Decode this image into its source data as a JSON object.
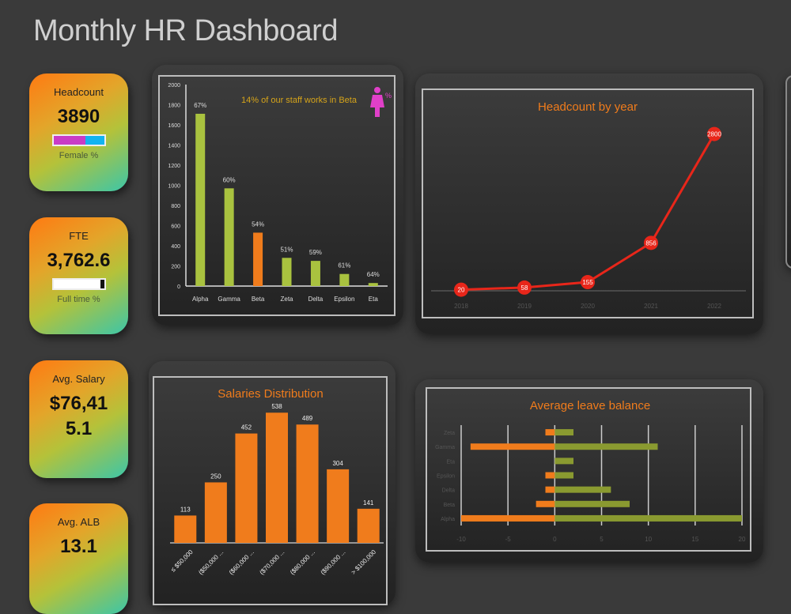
{
  "title": "Monthly HR Dashboard",
  "kpis": [
    {
      "label": "Headcount",
      "value": "3890",
      "sub": "Female %",
      "bar": {
        "fill": 0.63,
        "fill_color": "#c93cc6",
        "rest_color": "#12b3f0"
      }
    },
    {
      "label": "FTE",
      "value": "3,762.6",
      "sub": "Full time %",
      "bar": {
        "fill": 0.93,
        "fill_color": "#ffffff",
        "rest_color": "#111111"
      }
    },
    {
      "label": "Avg. Salary",
      "value": "$76,41 5.1"
    },
    {
      "label": "Avg. ALB",
      "value": "13.1"
    }
  ],
  "colors": {
    "accent": "#f07c1c",
    "green": "#a9c23f",
    "olive": "#8a9a30",
    "red": "#e8261a",
    "pink": "#e040c8"
  },
  "chart_data": [
    {
      "type": "bar",
      "title": "14% of our staff works in Beta",
      "icon": "female-icon",
      "icon_label": "%",
      "categories": [
        "Alpha",
        "Gamma",
        "Beta",
        "Zeta",
        "Delta",
        "Epsilon",
        "Eta"
      ],
      "values": [
        1710,
        970,
        530,
        280,
        250,
        120,
        30
      ],
      "data_labels": [
        "67%",
        "60%",
        "54%",
        "51%",
        "59%",
        "61%",
        "64%"
      ],
      "highlight": "Beta",
      "ylim": [
        0,
        2000
      ],
      "yticks": [
        "0",
        "200",
        "400",
        "600",
        "800",
        "1000",
        "1200",
        "1400",
        "1600",
        "1800",
        "2000"
      ]
    },
    {
      "type": "line",
      "title": "Headcount by year",
      "categories": [
        "2018",
        "2019",
        "2020",
        "2021",
        "2022"
      ],
      "values": [
        20,
        58,
        155,
        856,
        2800
      ],
      "ylim": [
        0,
        3500
      ]
    },
    {
      "type": "bar",
      "title": "Salaries Distribution",
      "categories": [
        "≤ $50,000",
        "($50,000 ...",
        "($60,000 ...",
        "($70,000 ...",
        "($80,000 ...",
        "($90,000 ...",
        "> $100,000"
      ],
      "values": [
        113,
        250,
        452,
        538,
        489,
        304,
        141
      ],
      "ylim": [
        0,
        600
      ]
    },
    {
      "type": "bar",
      "orientation": "horizontal",
      "title": "Average leave balance",
      "categories": [
        "Alpha",
        "Beta",
        "Delta",
        "Epsilon",
        "Eta",
        "Gamma",
        "Zeta"
      ],
      "series": [
        {
          "values": [
            -10,
            -2,
            -1,
            -1,
            0,
            -9,
            -1
          ]
        },
        {
          "values": [
            20,
            8,
            6,
            2,
            2,
            11,
            2
          ]
        }
      ],
      "xlim": [
        -10,
        20
      ],
      "xticks": [
        "-10",
        "-5",
        "0",
        "5",
        "10",
        "15",
        "20"
      ],
      "grid": true
    }
  ]
}
